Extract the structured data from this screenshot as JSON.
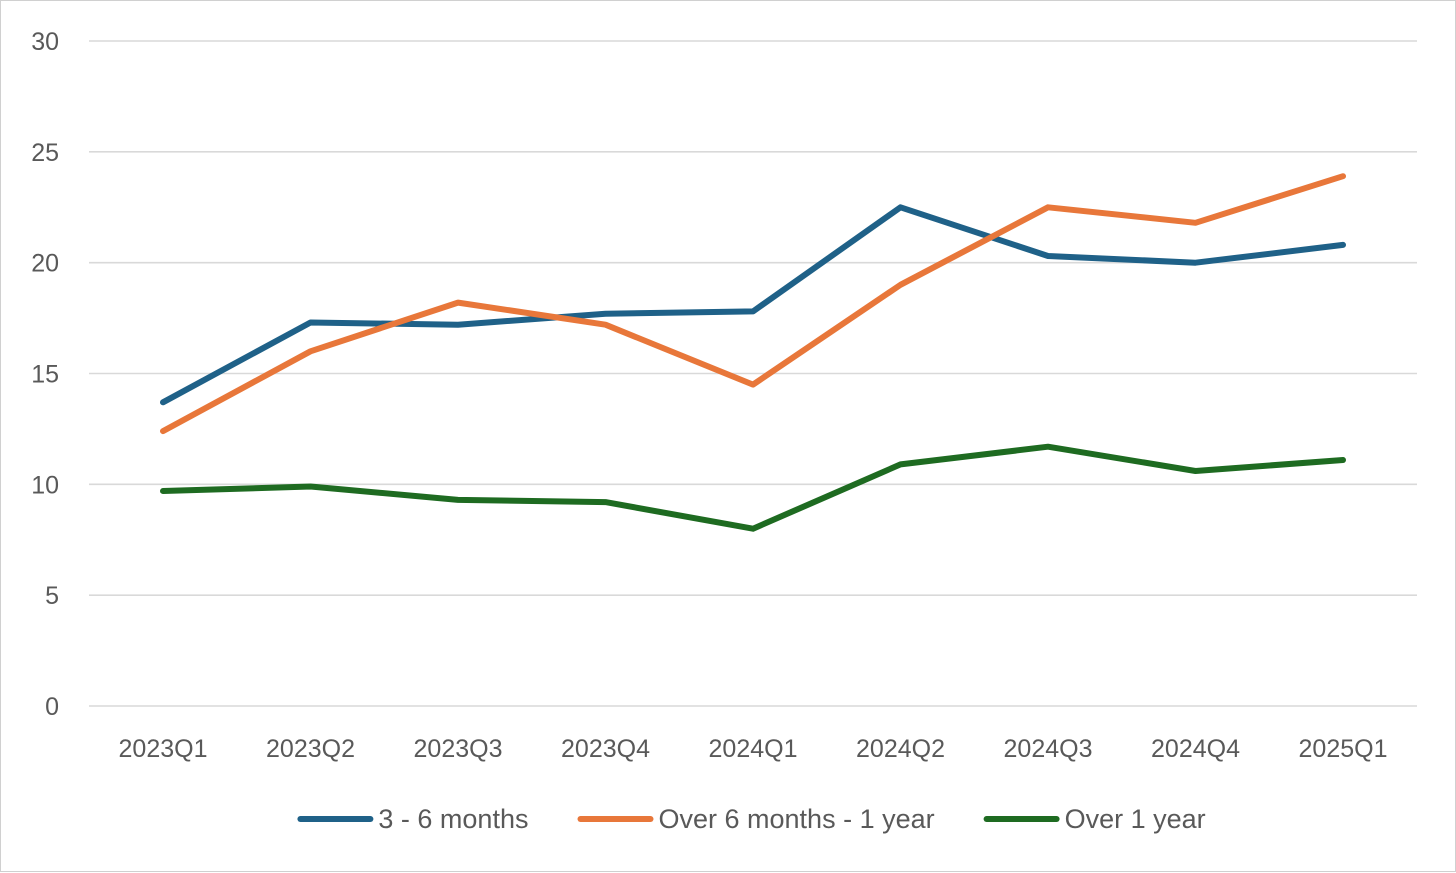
{
  "chart_data": {
    "type": "line",
    "title": "",
    "xlabel": "",
    "ylabel": "",
    "categories": [
      "2023Q1",
      "2023Q2",
      "2023Q3",
      "2023Q4",
      "2024Q1",
      "2024Q2",
      "2024Q3",
      "2024Q4",
      "2025Q1"
    ],
    "ylim": [
      0,
      30
    ],
    "yticks": [
      "0",
      "5",
      "10",
      "15",
      "20",
      "25",
      "30"
    ],
    "grid": true,
    "legend_position": "bottom",
    "series": [
      {
        "name": "3 - 6 months",
        "color": "#1f6188",
        "values": [
          13.7,
          17.3,
          17.2,
          17.7,
          17.8,
          22.5,
          20.3,
          20.0,
          20.8
        ]
      },
      {
        "name": "Over 6 months - 1 year",
        "color": "#e8773a",
        "values": [
          12.4,
          16.0,
          18.2,
          17.2,
          14.5,
          19.0,
          22.5,
          21.8,
          23.9
        ]
      },
      {
        "name": "Over 1 year",
        "color": "#1e6b21",
        "values": [
          9.7,
          9.9,
          9.3,
          9.2,
          8.0,
          10.9,
          11.7,
          10.6,
          11.1
        ]
      }
    ]
  }
}
